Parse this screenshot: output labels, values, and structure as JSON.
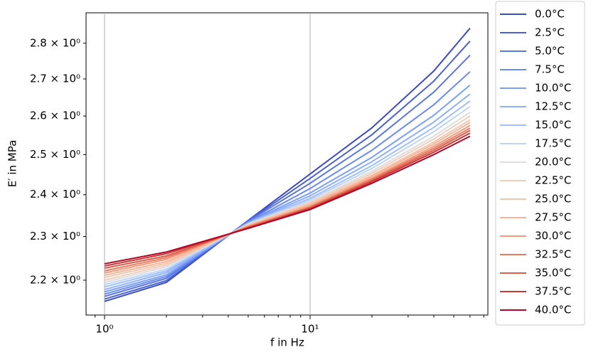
{
  "chart_data": {
    "type": "line",
    "xlabel": "f in Hz",
    "ylabel": "E′ in MPa",
    "xscale": "log",
    "yscale": "log",
    "grid": "x",
    "legend": "outside right",
    "xlim": [
      0.813,
      73.3
    ],
    "ylim": [
      2.1233,
      2.888
    ],
    "xticks": [
      {
        "value": 1,
        "label": "10⁰"
      },
      {
        "value": 10,
        "label": "10¹"
      }
    ],
    "xminorticks": [
      0.9,
      2,
      3,
      4,
      5,
      6,
      7,
      8,
      9,
      20,
      30,
      40,
      50,
      60,
      70
    ],
    "yticks": [
      {
        "value": 2.2,
        "label": "2.2 × 10⁰"
      },
      {
        "value": 2.3,
        "label": "2.3 × 10⁰"
      },
      {
        "value": 2.4,
        "label": "2.4 × 10⁰"
      },
      {
        "value": 2.5,
        "label": "2.5 × 10⁰"
      },
      {
        "value": 2.6,
        "label": "2.6 × 10⁰"
      },
      {
        "value": 2.7,
        "label": "2.7 × 10⁰"
      },
      {
        "value": 2.8,
        "label": "2.8 × 10⁰"
      }
    ],
    "x": [
      1,
      2,
      5,
      10,
      20,
      40,
      60
    ],
    "series": [
      {
        "name": "0.0°C",
        "color": "#3b4cc0",
        "values": [
          2.153,
          2.195,
          2.338,
          2.451,
          2.569,
          2.722,
          2.843
        ]
      },
      {
        "name": "2.5°C",
        "color": "#4961d2",
        "values": [
          2.158,
          2.199,
          2.337,
          2.44,
          2.551,
          2.694,
          2.806
        ]
      },
      {
        "name": "5.0°C",
        "color": "#5977e3",
        "values": [
          2.164,
          2.204,
          2.336,
          2.428,
          2.532,
          2.664,
          2.766
        ]
      },
      {
        "name": "7.5°C",
        "color": "#6a8bef",
        "values": [
          2.169,
          2.208,
          2.334,
          2.415,
          2.511,
          2.63,
          2.72
        ]
      },
      {
        "name": "10.0°C",
        "color": "#7b9ff9",
        "values": [
          2.174,
          2.212,
          2.333,
          2.404,
          2.493,
          2.602,
          2.683
        ]
      },
      {
        "name": "12.5°C",
        "color": "#8db0fe",
        "values": [
          2.179,
          2.217,
          2.332,
          2.397,
          2.482,
          2.584,
          2.659
        ]
      },
      {
        "name": "15.0°C",
        "color": "#9ebeff",
        "values": [
          2.185,
          2.221,
          2.331,
          2.391,
          2.472,
          2.57,
          2.64
        ]
      },
      {
        "name": "17.5°C",
        "color": "#c0d4f5",
        "values": [
          2.19,
          2.225,
          2.33,
          2.387,
          2.465,
          2.559,
          2.625
        ]
      },
      {
        "name": "20.0°C",
        "color": "#dcdddd",
        "values": [
          2.195,
          2.23,
          2.329,
          2.383,
          2.458,
          2.547,
          2.61
        ]
      },
      {
        "name": "22.5°C",
        "color": "#f1cdba",
        "values": [
          2.2,
          2.234,
          2.327,
          2.38,
          2.453,
          2.54,
          2.6
        ]
      },
      {
        "name": "25.0°C",
        "color": "#f4c5ad",
        "values": [
          2.206,
          2.238,
          2.326,
          2.377,
          2.448,
          2.532,
          2.59
        ]
      },
      {
        "name": "27.5°C",
        "color": "#f7b497",
        "values": [
          2.211,
          2.242,
          2.325,
          2.375,
          2.445,
          2.527,
          2.583
        ]
      },
      {
        "name": "30.0°C",
        "color": "#f49a7b",
        "values": [
          2.216,
          2.247,
          2.324,
          2.372,
          2.441,
          2.521,
          2.575
        ]
      },
      {
        "name": "32.5°C",
        "color": "#e97a5f",
        "values": [
          2.221,
          2.251,
          2.323,
          2.37,
          2.438,
          2.516,
          2.568
        ]
      },
      {
        "name": "35.0°C",
        "color": "#dc5d4a",
        "values": [
          2.227,
          2.255,
          2.321,
          2.368,
          2.435,
          2.511,
          2.562
        ]
      },
      {
        "name": "37.5°C",
        "color": "#c83836",
        "values": [
          2.232,
          2.26,
          2.32,
          2.366,
          2.432,
          2.506,
          2.555
        ]
      },
      {
        "name": "40.0°C",
        "color": "#b40426",
        "values": [
          2.237,
          2.264,
          2.319,
          2.364,
          2.428,
          2.5,
          2.547
        ]
      }
    ]
  }
}
